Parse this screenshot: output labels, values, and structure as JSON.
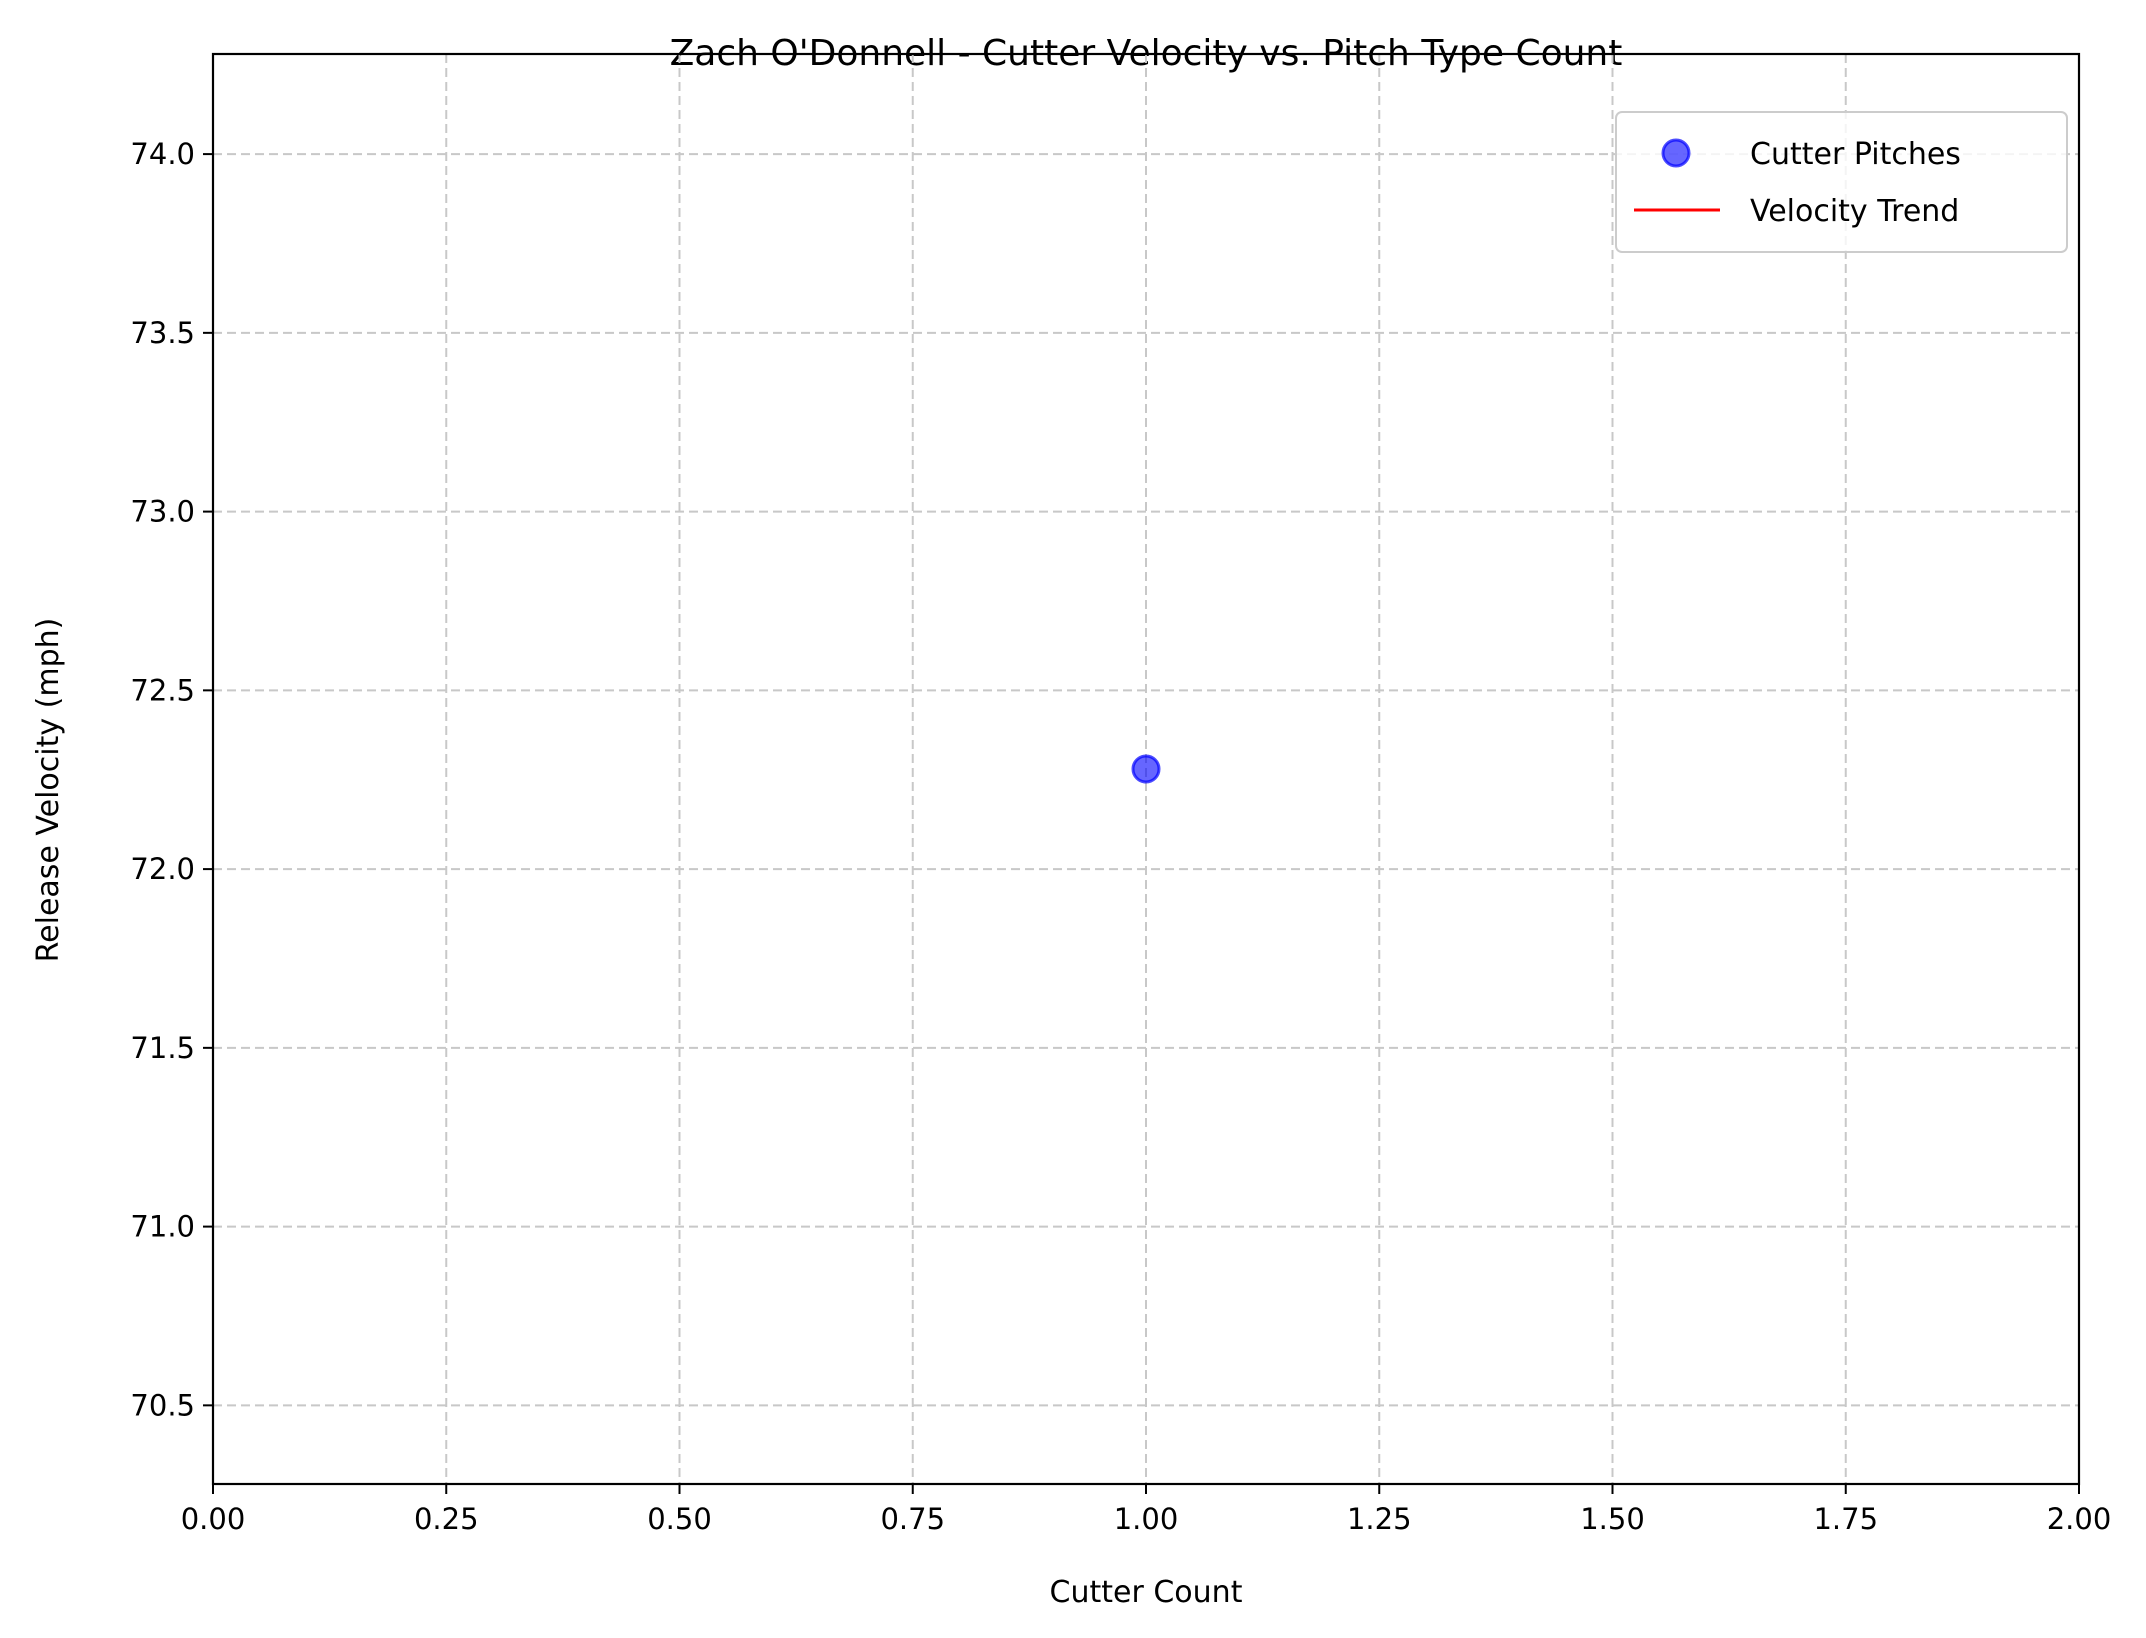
{
  "chart_data": {
    "type": "scatter",
    "title": "Zach O'Donnell - Cutter Velocity vs. Pitch Type Count",
    "xlabel": "Cutter Count",
    "ylabel": "Release Velocity (mph)",
    "xlim": [
      0.0,
      2.0
    ],
    "ylim": [
      70.28,
      74.28
    ],
    "xticks": [
      0.0,
      0.25,
      0.5,
      0.75,
      1.0,
      1.25,
      1.5,
      1.75,
      2.0
    ],
    "xtick_labels": [
      "0.00",
      "0.25",
      "0.50",
      "0.75",
      "1.00",
      "1.25",
      "1.50",
      "1.75",
      "2.00"
    ],
    "yticks": [
      70.5,
      71.0,
      71.5,
      72.0,
      72.5,
      73.0,
      73.5,
      74.0
    ],
    "ytick_labels": [
      "70.5",
      "71.0",
      "71.5",
      "72.0",
      "72.5",
      "73.0",
      "73.5",
      "74.0"
    ],
    "grid": true,
    "legend_position": "top-right",
    "series": [
      {
        "name": "Cutter Pitches",
        "kind": "scatter",
        "color": "#0000ff",
        "alpha": 0.6,
        "points": [
          {
            "x": 1.0,
            "y": 72.28
          }
        ]
      },
      {
        "name": "Velocity Trend",
        "kind": "line",
        "color": "#ff0000",
        "points": []
      }
    ]
  }
}
